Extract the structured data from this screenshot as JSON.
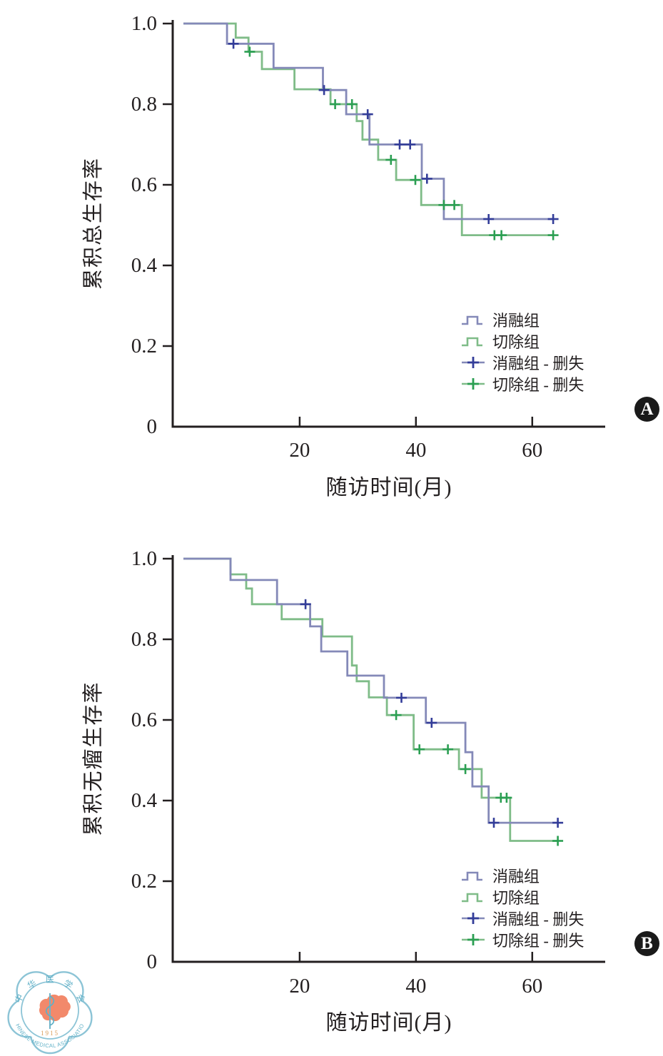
{
  "colors": {
    "ablation_line": "#8489b8",
    "ablation_censor": "#333d99",
    "resection_line": "#7fbc88",
    "resection_censor": "#2b9f52",
    "axis": "#231f20",
    "text": "#231f20",
    "badge_bg": "#1a1a1a",
    "badge_text": "#ffffff",
    "logo_blue": "#7db9cd",
    "logo_map_orange": "#f2896b",
    "logo_year_orange": "#d99a55"
  },
  "chart_data": [
    {
      "id": "A",
      "type": "line",
      "subtype": "kaplan-meier-step",
      "badge": "A",
      "ylabel": "累积总生存率",
      "xlabel": "随访时间(月)",
      "yticks": [
        "1.0",
        "0.8",
        "0.6",
        "0.4",
        "0.2",
        "0"
      ],
      "ytick_values": [
        1.0,
        0.8,
        0.6,
        0.4,
        0.2,
        0
      ],
      "xticks": [
        20,
        40,
        60
      ],
      "xlim": [
        0,
        72
      ],
      "ylim": [
        0,
        1.0
      ],
      "grid": false,
      "legend_position": "lower-right-inside",
      "legend": [
        {
          "label": "消融组",
          "type": "line",
          "line": "ablation_line"
        },
        {
          "label": "切除组",
          "type": "line",
          "line": "resection_line"
        },
        {
          "label": "消融组 - 删失",
          "type": "censor",
          "line": "ablation_line",
          "mark": "ablation_censor"
        },
        {
          "label": "切除组 - 删失",
          "type": "censor",
          "line": "resection_line",
          "mark": "resection_censor"
        }
      ],
      "series": [
        {
          "id": "resection",
          "name": "切除组",
          "line": "resection_line",
          "mark": "resection_censor",
          "steps": [
            [
              0,
              1.0
            ],
            [
              9,
              1.0
            ],
            [
              9,
              0.965
            ],
            [
              11.2,
              0.965
            ],
            [
              11.2,
              0.93
            ],
            [
              13.5,
              0.93
            ],
            [
              13.5,
              0.887
            ],
            [
              19.1,
              0.887
            ],
            [
              19.1,
              0.837
            ],
            [
              25.3,
              0.837
            ],
            [
              25.3,
              0.8
            ],
            [
              29.8,
              0.8
            ],
            [
              29.8,
              0.758
            ],
            [
              30.8,
              0.758
            ],
            [
              30.8,
              0.712
            ],
            [
              33.5,
              0.712
            ],
            [
              33.5,
              0.662
            ],
            [
              36.6,
              0.662
            ],
            [
              36.6,
              0.612
            ],
            [
              40.9,
              0.612
            ],
            [
              40.9,
              0.55
            ],
            [
              47.9,
              0.55
            ],
            [
              47.9,
              0.475
            ],
            [
              63.6,
              0.475
            ]
          ],
          "censors": [
            [
              11.4,
              0.93
            ],
            [
              26.1,
              0.8
            ],
            [
              29,
              0.8
            ],
            [
              35.7,
              0.662
            ],
            [
              39.9,
              0.612
            ],
            [
              44.8,
              0.55
            ],
            [
              46.6,
              0.55
            ],
            [
              53.5,
              0.475
            ],
            [
              54.7,
              0.475
            ],
            [
              63.6,
              0.475
            ]
          ]
        },
        {
          "id": "ablation",
          "name": "消融组",
          "line": "ablation_line",
          "mark": "ablation_censor",
          "steps": [
            [
              0,
              1.0
            ],
            [
              7.5,
              1.0
            ],
            [
              7.5,
              0.95
            ],
            [
              15.5,
              0.95
            ],
            [
              15.5,
              0.89
            ],
            [
              24,
              0.89
            ],
            [
              24,
              0.835
            ],
            [
              28,
              0.835
            ],
            [
              28,
              0.775
            ],
            [
              32,
              0.775
            ],
            [
              32,
              0.7
            ],
            [
              41,
              0.7
            ],
            [
              41,
              0.615
            ],
            [
              44.8,
              0.615
            ],
            [
              44.8,
              0.515
            ],
            [
              63.6,
              0.515
            ]
          ],
          "censors": [
            [
              8.6,
              0.95
            ],
            [
              24.2,
              0.835
            ],
            [
              31.7,
              0.775
            ],
            [
              37.2,
              0.7
            ],
            [
              39,
              0.7
            ],
            [
              41.9,
              0.615
            ],
            [
              52.5,
              0.515
            ],
            [
              63.6,
              0.515
            ]
          ]
        }
      ]
    },
    {
      "id": "B",
      "type": "line",
      "subtype": "kaplan-meier-step",
      "badge": "B",
      "ylabel": "累积无瘤生存率",
      "xlabel": "随访时间(月)",
      "yticks": [
        "1.0",
        "0.8",
        "0.6",
        "0.4",
        "0.2",
        "0"
      ],
      "ytick_values": [
        1.0,
        0.8,
        0.6,
        0.4,
        0.2,
        0
      ],
      "xticks": [
        20,
        40,
        60
      ],
      "xlim": [
        0,
        72
      ],
      "ylim": [
        0,
        1.0
      ],
      "grid": false,
      "legend_position": "lower-right-inside",
      "legend": [
        {
          "label": "消融组",
          "type": "line",
          "line": "ablation_line"
        },
        {
          "label": "切除组",
          "type": "line",
          "line": "resection_line"
        },
        {
          "label": "消融组 - 删失",
          "type": "censor",
          "line": "ablation_line",
          "mark": "ablation_censor"
        },
        {
          "label": "切除组 - 删失",
          "type": "censor",
          "line": "resection_line",
          "mark": "resection_censor"
        }
      ],
      "series": [
        {
          "id": "resection",
          "name": "切除组",
          "line": "resection_line",
          "mark": "resection_censor",
          "steps": [
            [
              0,
              1.0
            ],
            [
              8.1,
              1.0
            ],
            [
              8.1,
              0.961
            ],
            [
              10.8,
              0.961
            ],
            [
              10.8,
              0.926
            ],
            [
              11.8,
              0.926
            ],
            [
              11.8,
              0.887
            ],
            [
              16.9,
              0.887
            ],
            [
              16.9,
              0.85
            ],
            [
              23.9,
              0.85
            ],
            [
              23.9,
              0.807
            ],
            [
              29,
              0.807
            ],
            [
              29,
              0.735
            ],
            [
              29.8,
              0.735
            ],
            [
              29.8,
              0.696
            ],
            [
              31.9,
              0.696
            ],
            [
              31.9,
              0.656
            ],
            [
              35,
              0.656
            ],
            [
              35,
              0.612
            ],
            [
              39.6,
              0.612
            ],
            [
              39.6,
              0.527
            ],
            [
              47.4,
              0.527
            ],
            [
              47.4,
              0.478
            ],
            [
              51.3,
              0.478
            ],
            [
              51.3,
              0.407
            ],
            [
              56.2,
              0.407
            ],
            [
              56.2,
              0.3
            ],
            [
              64.4,
              0.3
            ]
          ],
          "censors": [
            [
              36.6,
              0.612
            ],
            [
              40.6,
              0.527
            ],
            [
              45.5,
              0.527
            ],
            [
              48.5,
              0.478
            ],
            [
              54.6,
              0.407
            ],
            [
              55.6,
              0.407
            ],
            [
              64.4,
              0.3
            ]
          ]
        },
        {
          "id": "ablation",
          "name": "消融组",
          "line": "ablation_line",
          "mark": "ablation_censor",
          "steps": [
            [
              0,
              1.0
            ],
            [
              8.1,
              1.0
            ],
            [
              8.1,
              0.947
            ],
            [
              16.1,
              0.947
            ],
            [
              16.1,
              0.887
            ],
            [
              21.8,
              0.887
            ],
            [
              21.8,
              0.832
            ],
            [
              23.7,
              0.832
            ],
            [
              23.7,
              0.77
            ],
            [
              28.2,
              0.77
            ],
            [
              28.2,
              0.71
            ],
            [
              34.5,
              0.71
            ],
            [
              34.5,
              0.655
            ],
            [
              41.7,
              0.655
            ],
            [
              41.7,
              0.593
            ],
            [
              48.5,
              0.593
            ],
            [
              48.5,
              0.52
            ],
            [
              49.7,
              0.52
            ],
            [
              49.7,
              0.435
            ],
            [
              52.5,
              0.435
            ],
            [
              52.5,
              0.345
            ],
            [
              64.4,
              0.345
            ]
          ],
          "censors": [
            [
              21,
              0.887
            ],
            [
              37.5,
              0.655
            ],
            [
              42.7,
              0.593
            ],
            [
              53.4,
              0.345
            ],
            [
              64.4,
              0.345
            ]
          ]
        }
      ]
    }
  ],
  "logo": {
    "org_cn": "中华医学会",
    "org_en": "CHINESE MEDICAL ASSOCIATION",
    "year": "1915"
  }
}
